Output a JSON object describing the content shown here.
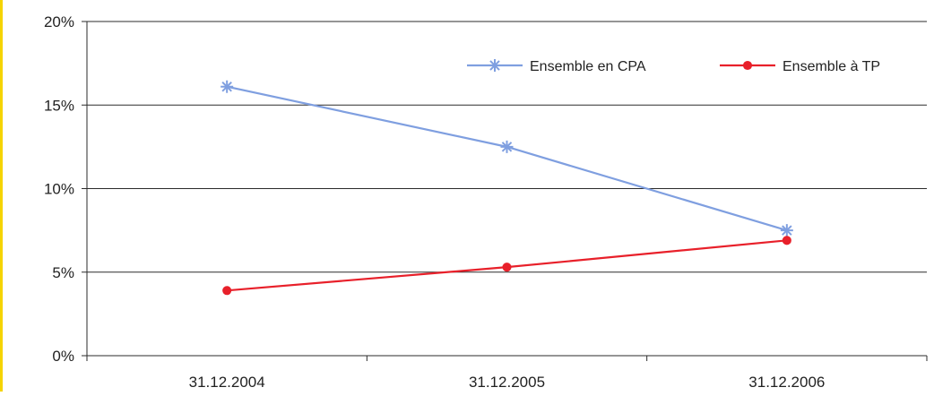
{
  "chart_data": {
    "type": "line",
    "title": "",
    "xlabel": "",
    "ylabel": "",
    "categories": [
      "31.12.2004",
      "31.12.2005",
      "31.12.2006"
    ],
    "y_ticks": [
      0,
      5,
      10,
      15,
      20
    ],
    "y_tick_labels": [
      "0%",
      "5%",
      "10%",
      "15%",
      "20%"
    ],
    "ylim": [
      0,
      20
    ],
    "grid": true,
    "legend_position": "top-right",
    "series": [
      {
        "name": "Ensemble en CPA",
        "values": [
          16.1,
          12.5,
          7.5
        ],
        "color": "#7f9fe0",
        "marker": "asterisk"
      },
      {
        "name": "Ensemble à TP",
        "values": [
          3.9,
          5.3,
          6.9
        ],
        "color": "#e8202a",
        "marker": "circle"
      }
    ]
  },
  "colors": {
    "gridline": "#2b2b2b",
    "edge": "#f5d400"
  }
}
